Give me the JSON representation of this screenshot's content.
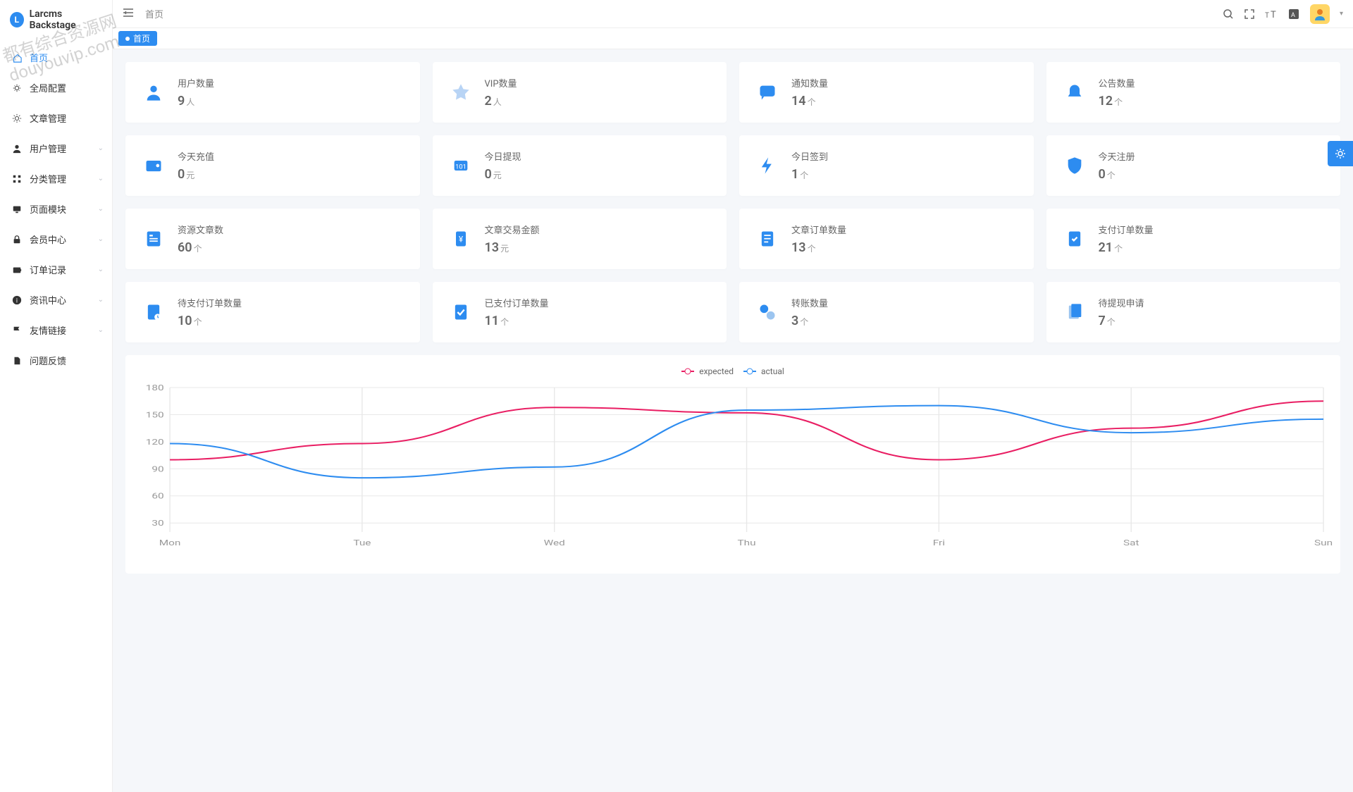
{
  "app": {
    "name": "Larcms Backstage"
  },
  "sidebar": {
    "items": [
      {
        "icon": "home",
        "label": "首页",
        "active": true,
        "expandable": false
      },
      {
        "icon": "gear",
        "label": "全局配置",
        "expandable": false
      },
      {
        "icon": "sun",
        "label": "文章管理",
        "expandable": false
      },
      {
        "icon": "user",
        "label": "用户管理",
        "expandable": true
      },
      {
        "icon": "grid",
        "label": "分类管理",
        "expandable": true
      },
      {
        "icon": "monitor",
        "label": "页面模块",
        "expandable": true
      },
      {
        "icon": "lock",
        "label": "会员中心",
        "expandable": true
      },
      {
        "icon": "wallet",
        "label": "订单记录",
        "expandable": true
      },
      {
        "icon": "info",
        "label": "资讯中心",
        "expandable": true
      },
      {
        "icon": "flag",
        "label": "友情链接",
        "expandable": true
      },
      {
        "icon": "file",
        "label": "问题反馈",
        "expandable": false
      }
    ]
  },
  "breadcrumb": "首页",
  "tab": {
    "label": "首页"
  },
  "cards": [
    {
      "icon": "user",
      "title": "用户数量",
      "value": "9",
      "unit": "人"
    },
    {
      "icon": "star",
      "title": "VIP数量",
      "value": "2",
      "unit": "人"
    },
    {
      "icon": "chat",
      "title": "通知数量",
      "value": "14",
      "unit": "个"
    },
    {
      "icon": "bell",
      "title": "公告数量",
      "value": "12",
      "unit": "个"
    },
    {
      "icon": "wallet",
      "title": "今天充值",
      "value": "0",
      "unit": "元"
    },
    {
      "icon": "withdraw",
      "title": "今日提现",
      "value": "0",
      "unit": "元"
    },
    {
      "icon": "bolt",
      "title": "今日签到",
      "value": "1",
      "unit": "个"
    },
    {
      "icon": "shield",
      "title": "今天注册",
      "value": "0",
      "unit": "个"
    },
    {
      "icon": "article",
      "title": "资源文章数",
      "value": "60",
      "unit": "个"
    },
    {
      "icon": "money",
      "title": "文章交易金额",
      "value": "13",
      "unit": "元"
    },
    {
      "icon": "doc",
      "title": "文章订单数量",
      "value": "13",
      "unit": "个"
    },
    {
      "icon": "payorder",
      "title": "支付订单数量",
      "value": "21",
      "unit": "个"
    },
    {
      "icon": "pending",
      "title": "待支付订单数量",
      "value": "10",
      "unit": "个"
    },
    {
      "icon": "paid",
      "title": "已支付订单数量",
      "value": "11",
      "unit": "个"
    },
    {
      "icon": "transfer",
      "title": "转账数量",
      "value": "3",
      "unit": "个"
    },
    {
      "icon": "withdrawreq",
      "title": "待提现申请",
      "value": "7",
      "unit": "个"
    }
  ],
  "chart": {
    "legend": [
      {
        "name": "expected",
        "color": "#e91e63"
      },
      {
        "name": "actual",
        "color": "#2d8cf0"
      }
    ],
    "x_labels": [
      "Mon",
      "Tue",
      "Wed",
      "Thu",
      "Fri",
      "Sat",
      "Sun"
    ],
    "y_ticks": [
      30,
      60,
      90,
      120,
      150,
      180
    ],
    "ylim": [
      20,
      180
    ],
    "series": {
      "expected": [
        100,
        118,
        158,
        152,
        100,
        135,
        165
      ],
      "actual": [
        118,
        80,
        92,
        155,
        160,
        130,
        145
      ]
    },
    "grid_color": "#e8e8e8",
    "axis_color": "#999",
    "background": "#ffffff"
  },
  "watermark": "都有综合资源网\ndouyouvip.com"
}
